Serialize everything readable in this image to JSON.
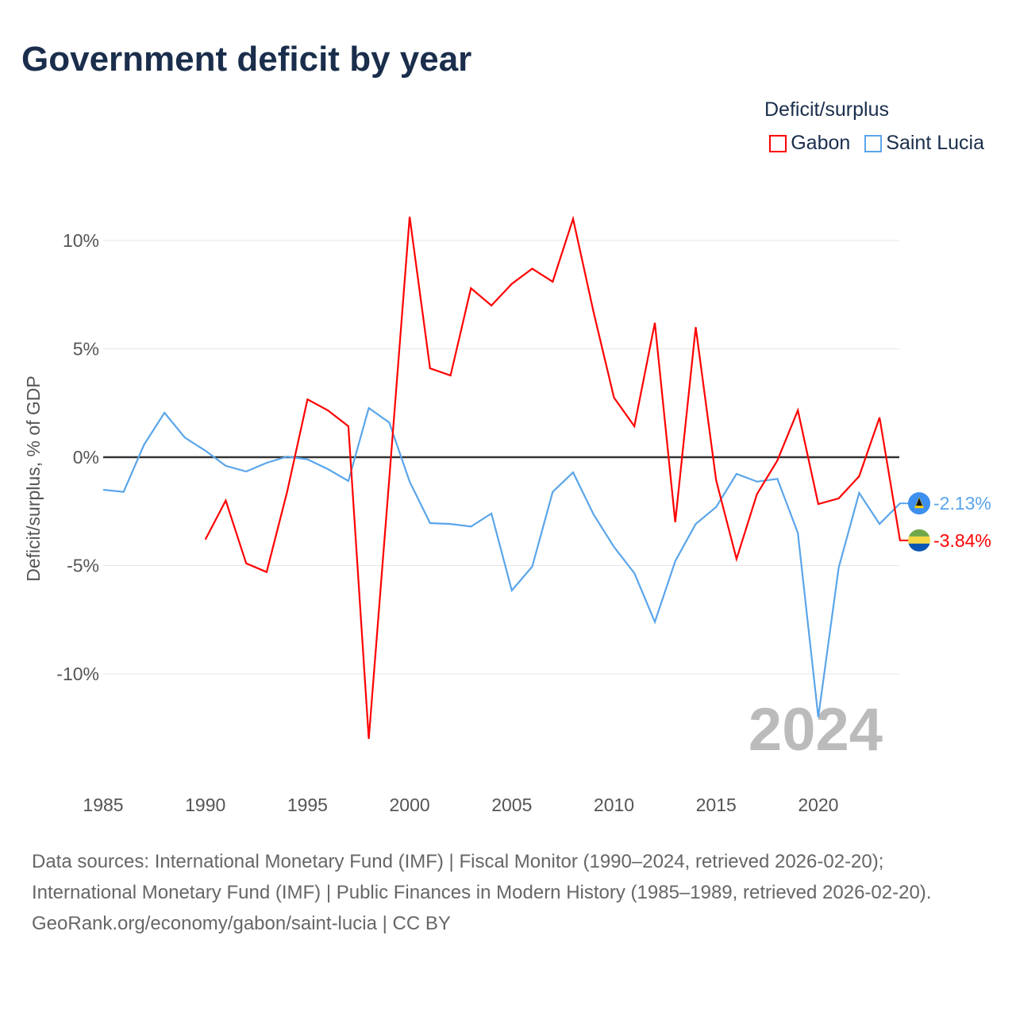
{
  "title": "Government deficit by year",
  "legend": {
    "title": "Deficit/surplus",
    "items": [
      "Gabon",
      "Saint Lucia"
    ]
  },
  "watermark_year": "2024",
  "sources": [
    "Data sources: International Monetary Fund (IMF) | Fiscal Monitor (1990–2024, retrieved 2026-02-20); International Monetary Fund (IMF) | Public Finances in Modern History (1985–1989, retrieved 2026-02-20).",
    "GeoRank.org/economy/gabon/saint-lucia | CC BY"
  ],
  "chart_data": {
    "type": "line",
    "title": "Government deficit by year",
    "xlabel": "",
    "ylabel": "Deficit/surplus, % of GDP",
    "xlim": [
      1985,
      2024
    ],
    "ylim": [
      -13.5,
      11.5
    ],
    "x_ticks": [
      "1985",
      "1990",
      "1995",
      "2000",
      "2005",
      "2010",
      "2015",
      "2020"
    ],
    "y_ticks": [
      {
        "v": 10,
        "label": "10%"
      },
      {
        "v": 5,
        "label": "5%"
      },
      {
        "v": 0,
        "label": "0%"
      },
      {
        "v": -5,
        "label": "-5%"
      },
      {
        "v": -10,
        "label": "-10%"
      }
    ],
    "grid": true,
    "legend_position": "top-right",
    "series": [
      {
        "name": "Gabon",
        "color": "#ff0000",
        "end_label": "-3.84%",
        "start": 1990,
        "values": [
          -3.8,
          -2.0,
          -4.9,
          -5.3,
          -1.6,
          2.67,
          2.16,
          1.43,
          -13.0,
          -1.0,
          11.1,
          4.1,
          3.77,
          7.8,
          7.0,
          8.0,
          8.7,
          8.1,
          11.0,
          6.7,
          2.75,
          1.43,
          6.2,
          -3.0,
          6.0,
          -1.06,
          -4.7,
          -1.7,
          -0.15,
          2.16,
          -2.16,
          -1.9,
          -0.88,
          1.83,
          -3.84
        ]
      },
      {
        "name": "Saint Lucia",
        "color": "#5aa5ea",
        "end_label": "-2.13%",
        "start": 1985,
        "values": [
          -1.5,
          -1.6,
          0.58,
          2.05,
          0.9,
          0.3,
          -0.4,
          -0.66,
          -0.26,
          0.03,
          -0.1,
          -0.55,
          -1.1,
          2.27,
          1.6,
          -1.13,
          -3.04,
          -3.08,
          -3.2,
          -2.6,
          -6.15,
          -5.05,
          -1.6,
          -0.7,
          -2.64,
          -4.14,
          -5.35,
          -7.6,
          -4.8,
          -3.08,
          -2.3,
          -0.77,
          -1.13,
          -1.0,
          -3.5,
          -12.0,
          -5.1,
          -1.65,
          -3.08,
          -2.13
        ]
      }
    ]
  }
}
